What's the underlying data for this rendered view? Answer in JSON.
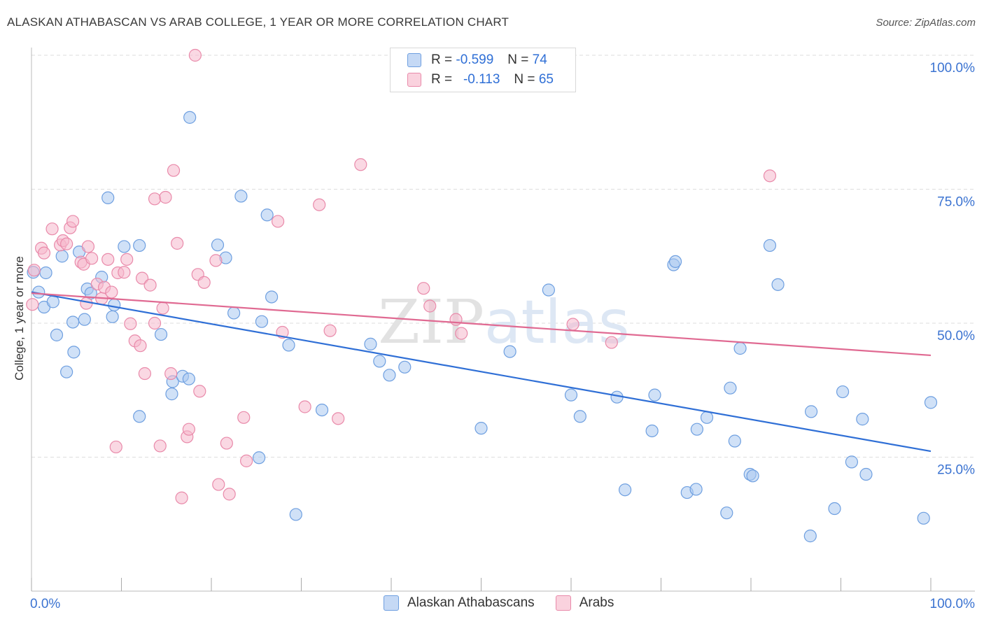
{
  "header": {
    "title": "ALASKAN ATHABASCAN VS ARAB COLLEGE, 1 YEAR OR MORE CORRELATION CHART",
    "source": "Source: ZipAtlas.com"
  },
  "watermark": "ZIPatlas",
  "legend_top": [
    {
      "r_label": "R = ",
      "r_value": "-0.599",
      "n_label": "N = ",
      "n_value": "74"
    },
    {
      "r_label": "R = ",
      "r_value": "-0.113",
      "n_label": "N = ",
      "n_value": "65"
    }
  ],
  "colors": {
    "blue_fill": "#aac8f0",
    "blue_stroke": "#6e9fe0",
    "blue_line": "#2f6fd6",
    "pink_fill": "#f5b8cc",
    "pink_stroke": "#e98aaa",
    "pink_line": "#e06a92",
    "axis_text": "#3b73d1",
    "grid": "#dddddd"
  },
  "chart_data": {
    "type": "scatter",
    "title": "ALASKAN ATHABASCAN VS ARAB COLLEGE, 1 YEAR OR MORE CORRELATION CHART",
    "xlabel": "",
    "ylabel": "College, 1 year or more",
    "xlim": [
      0,
      100
    ],
    "ylim": [
      0,
      100
    ],
    "x_tick_labels": [
      "0.0%",
      "100.0%"
    ],
    "y_tick_values": [
      25,
      50,
      75,
      100
    ],
    "y_tick_labels": [
      "25.0%",
      "50.0%",
      "75.0%",
      "100.0%"
    ],
    "grid": true,
    "legend_position": "top-center",
    "series": [
      {
        "name": "Alaskan Athabascans",
        "color": "#aac8f0",
        "trend": {
          "x": [
            0,
            100
          ],
          "y": [
            55.8,
            26.1
          ]
        },
        "points": [
          [
            0.2,
            59.5
          ],
          [
            0.8,
            55.8
          ],
          [
            1.4,
            53.0
          ],
          [
            1.6,
            59.4
          ],
          [
            2.4,
            54.0
          ],
          [
            2.8,
            47.8
          ],
          [
            3.4,
            62.5
          ],
          [
            3.9,
            40.9
          ],
          [
            4.6,
            50.2
          ],
          [
            4.7,
            44.6
          ],
          [
            5.3,
            63.3
          ],
          [
            5.9,
            50.7
          ],
          [
            6.2,
            56.4
          ],
          [
            6.6,
            55.6
          ],
          [
            7.8,
            58.6
          ],
          [
            8.5,
            73.4
          ],
          [
            9.0,
            51.2
          ],
          [
            9.2,
            53.4
          ],
          [
            10.3,
            64.3
          ],
          [
            12.0,
            32.6
          ],
          [
            12.0,
            64.5
          ],
          [
            14.4,
            47.9
          ],
          [
            15.6,
            36.8
          ],
          [
            15.7,
            39.1
          ],
          [
            16.8,
            40.1
          ],
          [
            17.5,
            39.6
          ],
          [
            17.6,
            88.4
          ],
          [
            20.7,
            64.6
          ],
          [
            21.6,
            62.2
          ],
          [
            22.5,
            51.9
          ],
          [
            23.3,
            73.7
          ],
          [
            25.3,
            24.9
          ],
          [
            25.6,
            50.3
          ],
          [
            26.2,
            70.2
          ],
          [
            26.7,
            54.9
          ],
          [
            28.6,
            45.9
          ],
          [
            29.4,
            14.3
          ],
          [
            32.3,
            33.8
          ],
          [
            37.7,
            46.1
          ],
          [
            38.7,
            42.9
          ],
          [
            39.8,
            40.3
          ],
          [
            41.5,
            41.8
          ],
          [
            50.0,
            30.4
          ],
          [
            53.2,
            44.7
          ],
          [
            57.5,
            56.2
          ],
          [
            60.0,
            36.6
          ],
          [
            61.0,
            32.6
          ],
          [
            65.1,
            36.2
          ],
          [
            66.0,
            18.9
          ],
          [
            69.0,
            29.9
          ],
          [
            69.3,
            36.6
          ],
          [
            71.4,
            60.9
          ],
          [
            71.6,
            61.5
          ],
          [
            72.9,
            18.4
          ],
          [
            73.9,
            19.0
          ],
          [
            74.0,
            30.2
          ],
          [
            75.1,
            32.4
          ],
          [
            77.3,
            14.6
          ],
          [
            77.7,
            37.9
          ],
          [
            78.2,
            28.0
          ],
          [
            78.8,
            45.3
          ],
          [
            79.9,
            21.8
          ],
          [
            80.2,
            21.5
          ],
          [
            82.1,
            64.5
          ],
          [
            83.0,
            57.2
          ],
          [
            86.6,
            10.3
          ],
          [
            86.7,
            33.5
          ],
          [
            89.3,
            15.4
          ],
          [
            90.2,
            37.2
          ],
          [
            91.2,
            24.1
          ],
          [
            92.4,
            32.1
          ],
          [
            92.8,
            21.8
          ],
          [
            99.2,
            13.6
          ],
          [
            100.0,
            35.2
          ]
        ]
      },
      {
        "name": "Arabs",
        "color": "#f5b8cc",
        "trend": {
          "x": [
            0,
            100
          ],
          "y": [
            55.6,
            44.0
          ]
        },
        "points": [
          [
            0.1,
            53.5
          ],
          [
            0.3,
            59.9
          ],
          [
            1.1,
            64.0
          ],
          [
            1.4,
            63.1
          ],
          [
            2.3,
            67.6
          ],
          [
            3.2,
            64.6
          ],
          [
            3.5,
            65.4
          ],
          [
            3.9,
            64.8
          ],
          [
            4.3,
            67.8
          ],
          [
            4.6,
            69.0
          ],
          [
            5.5,
            61.4
          ],
          [
            5.8,
            61.0
          ],
          [
            6.1,
            53.7
          ],
          [
            6.3,
            64.3
          ],
          [
            6.7,
            62.1
          ],
          [
            7.3,
            57.3
          ],
          [
            7.8,
            54.6
          ],
          [
            8.1,
            56.7
          ],
          [
            8.5,
            61.9
          ],
          [
            8.9,
            55.8
          ],
          [
            9.4,
            26.9
          ],
          [
            9.6,
            59.4
          ],
          [
            10.3,
            59.5
          ],
          [
            10.6,
            61.9
          ],
          [
            11.0,
            49.9
          ],
          [
            11.5,
            46.7
          ],
          [
            12.1,
            45.8
          ],
          [
            12.3,
            58.4
          ],
          [
            12.6,
            40.6
          ],
          [
            13.2,
            57.1
          ],
          [
            13.7,
            73.2
          ],
          [
            13.7,
            50.0
          ],
          [
            14.3,
            27.1
          ],
          [
            14.6,
            52.8
          ],
          [
            15.5,
            40.6
          ],
          [
            15.8,
            78.5
          ],
          [
            16.2,
            64.9
          ],
          [
            16.7,
            17.4
          ],
          [
            17.3,
            28.8
          ],
          [
            17.5,
            30.2
          ],
          [
            18.5,
            59.1
          ],
          [
            18.7,
            37.3
          ],
          [
            19.2,
            57.6
          ],
          [
            20.5,
            61.7
          ],
          [
            20.8,
            19.9
          ],
          [
            21.7,
            27.6
          ],
          [
            22.0,
            18.1
          ],
          [
            23.6,
            32.4
          ],
          [
            23.9,
            24.3
          ],
          [
            27.9,
            48.3
          ],
          [
            30.4,
            34.4
          ],
          [
            32.0,
            72.1
          ],
          [
            33.2,
            48.6
          ],
          [
            34.1,
            32.2
          ],
          [
            36.6,
            79.6
          ],
          [
            43.6,
            56.5
          ],
          [
            44.3,
            53.2
          ],
          [
            47.2,
            50.7
          ],
          [
            47.8,
            48.1
          ],
          [
            60.2,
            49.8
          ],
          [
            64.5,
            46.4
          ],
          [
            82.1,
            77.5
          ],
          [
            18.2,
            100.0
          ],
          [
            14.9,
            73.5
          ],
          [
            27.4,
            69.0
          ]
        ]
      }
    ]
  },
  "bottom_legend": [
    {
      "label": "Alaskan Athabascans"
    },
    {
      "label": "Arabs"
    }
  ]
}
